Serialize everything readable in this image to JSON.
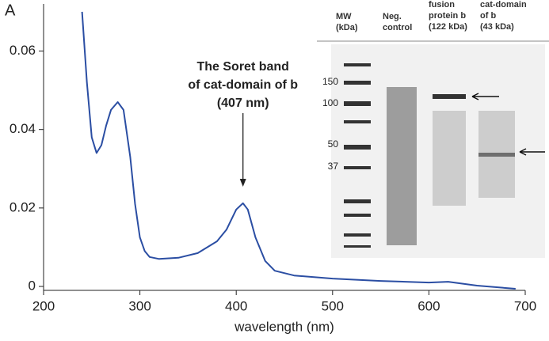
{
  "chart_data": {
    "type": "line",
    "panel_label": "A",
    "x_label": "wavelength (nm)",
    "annotation": [
      "The Soret band",
      "of cat-domain of b",
      "(407 nm)"
    ],
    "annotation_x": 407,
    "x": [
      240,
      245,
      250,
      255,
      260,
      265,
      270,
      277,
      283,
      290,
      295,
      300,
      305,
      310,
      320,
      340,
      360,
      380,
      390,
      400,
      407,
      412,
      420,
      430,
      440,
      460,
      500,
      550,
      600,
      620,
      650,
      690
    ],
    "series": [
      {
        "color": "#2b4ea3",
        "values": [
          0.07,
          0.052,
          0.038,
          0.034,
          0.036,
          0.041,
          0.045,
          0.047,
          0.045,
          0.033,
          0.021,
          0.0125,
          0.009,
          0.0075,
          0.007,
          0.0073,
          0.0085,
          0.0115,
          0.0145,
          0.0196,
          0.0212,
          0.0196,
          0.0125,
          0.0065,
          0.004,
          0.0028,
          0.002,
          0.0014,
          0.001,
          0.0012,
          0.0002,
          -0.0006
        ]
      }
    ],
    "xlim": [
      200,
      700
    ],
    "xticks": [
      200,
      300,
      400,
      500,
      600,
      700
    ],
    "ylim": [
      -0.001,
      0.072
    ],
    "yticks": [
      0,
      0.02,
      0.04,
      0.06
    ],
    "inset": {
      "lanes": [
        [
          "MW",
          "(kDa)"
        ],
        [
          "Neg.",
          "control"
        ],
        [
          "fusion",
          "protein b",
          "(122 kDa)"
        ],
        [
          "cat-domain",
          "of b",
          "(43 kDa)"
        ]
      ],
      "ladder_labels": [
        "150",
        "100",
        "50",
        "37"
      ]
    }
  }
}
